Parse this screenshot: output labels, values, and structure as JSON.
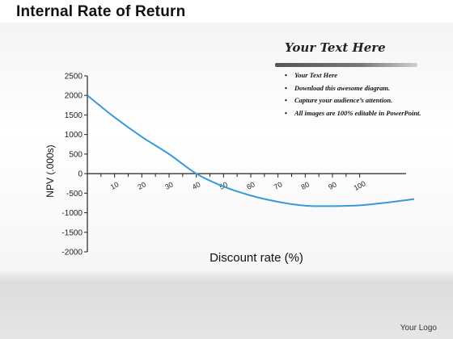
{
  "slide": {
    "title": "Internal Rate of Return",
    "footer": "Your Logo"
  },
  "textbox": {
    "heading": "Your Text Here",
    "bullets": [
      "Your Text Here",
      "Download this awesome diagram.",
      "Capture your audience’s attention.",
      "All images are 100% editable in PowerPoint."
    ]
  },
  "chart_data": {
    "type": "line",
    "xlabel": "Discount rate (%)",
    "ylabel": "NPV (.000s)",
    "y_ticks": [
      "2500",
      "2000",
      "1500",
      "1000",
      "500",
      "0",
      "-500",
      "-1000",
      "-1500",
      "-2000"
    ],
    "y_tick_values": [
      2500,
      2000,
      1500,
      1000,
      500,
      0,
      -500,
      -1000,
      -1500,
      -2000
    ],
    "x_ticks": [
      "10",
      "20",
      "30",
      "40",
      "50",
      "60",
      "70",
      "80",
      "90",
      "100"
    ],
    "x_tick_values": [
      10,
      20,
      30,
      40,
      50,
      60,
      70,
      80,
      90,
      100
    ],
    "xlim": [
      0,
      120
    ],
    "ylim": [
      -2000,
      2500
    ],
    "series": [
      {
        "color": "#3a9ad9",
        "x": [
          0,
          10,
          20,
          30,
          40,
          50,
          60,
          70,
          80,
          90,
          100,
          110,
          120
        ],
        "y": [
          2000,
          1440,
          940,
          500,
          0,
          -330,
          -560,
          -720,
          -820,
          -830,
          -810,
          -740,
          -650
        ]
      }
    ],
    "grid": false,
    "legend": "none"
  }
}
